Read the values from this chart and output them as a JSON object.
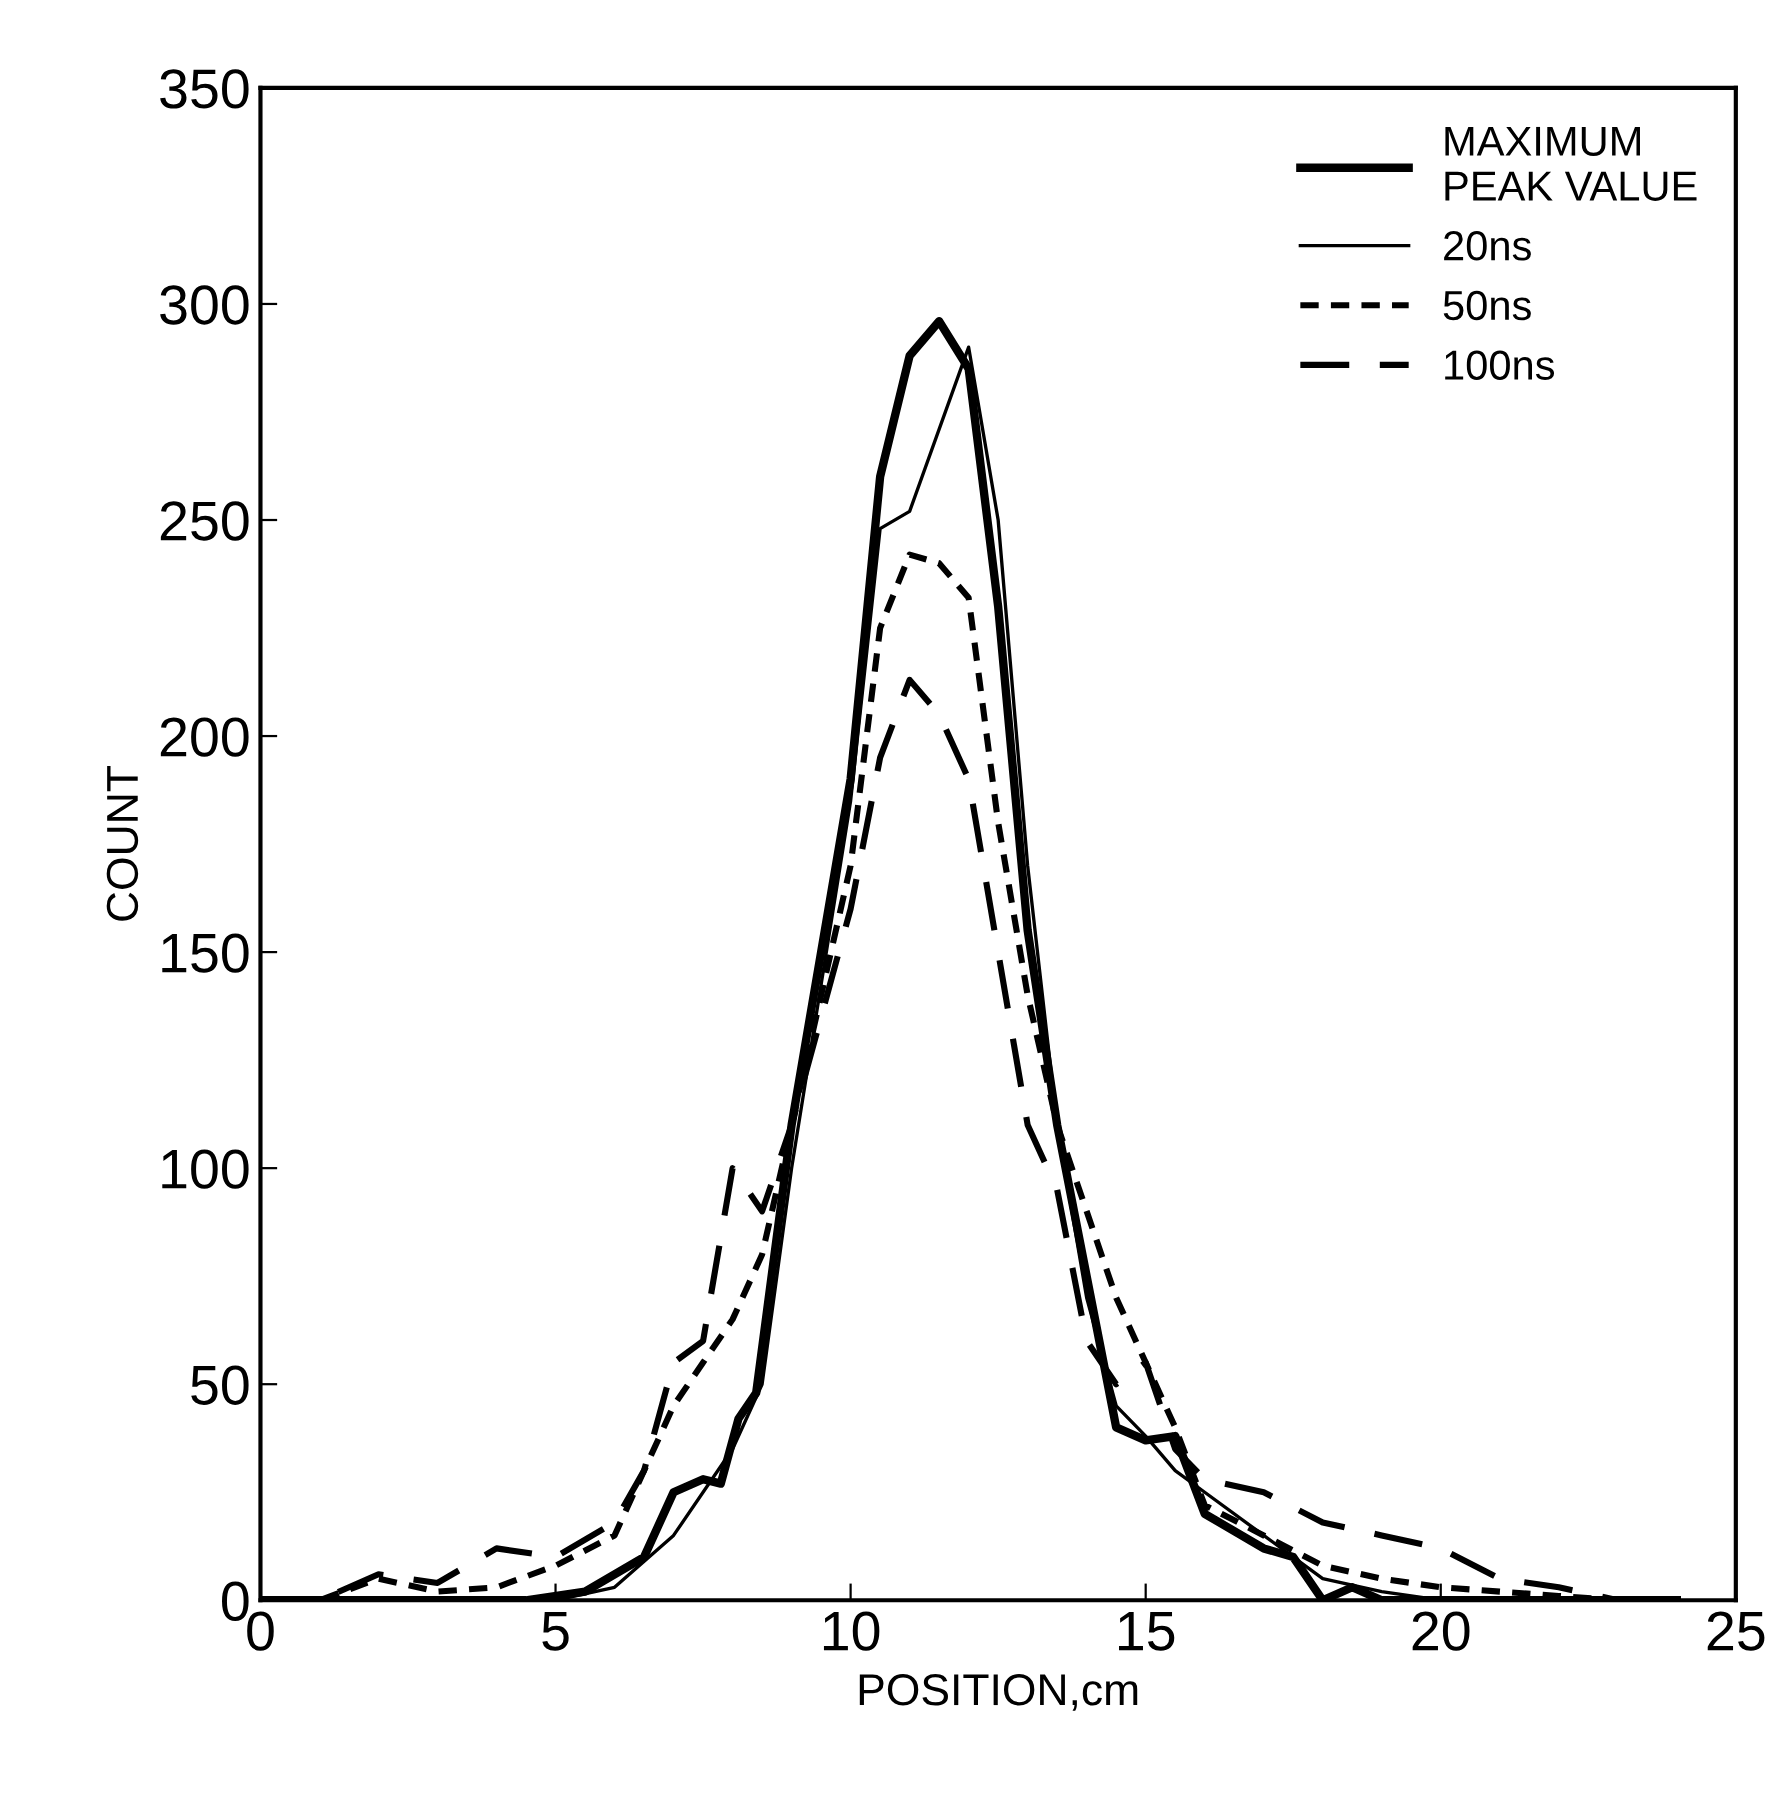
{
  "chart_data": {
    "type": "line",
    "xlabel": "POSITION,cm",
    "ylabel": "COUNT",
    "xlim": [
      0,
      25
    ],
    "ylim": [
      0,
      350
    ],
    "xticks": [
      0,
      5,
      10,
      15,
      20,
      25
    ],
    "yticks": [
      0,
      50,
      100,
      150,
      200,
      250,
      300,
      350
    ],
    "grid": false,
    "legend": "top right",
    "marker": "none",
    "series": [
      {
        "name": "MAXIMUM\nPEAK VALUE",
        "color": "#000000",
        "line_style": "solid",
        "x": [
          0,
          1,
          2,
          3,
          4,
          4.5,
          5.5,
          6.5,
          7,
          7.5,
          7.8,
          8.1,
          8.4,
          9,
          9.5,
          10,
          10.5,
          11,
          11.5,
          12,
          12.5,
          13,
          13.5,
          14,
          14.5,
          15,
          15.5,
          16,
          17,
          17.5,
          18,
          18.5,
          19,
          20,
          21,
          22,
          23,
          24
        ],
        "values": [
          0,
          0,
          0,
          0,
          0,
          0,
          2,
          10,
          25,
          28,
          27,
          42,
          48,
          110,
          150,
          190,
          260,
          288,
          296,
          285,
          230,
          155,
          110,
          75,
          40,
          37,
          38,
          20,
          12,
          10,
          0,
          3,
          0,
          0,
          0,
          0,
          0,
          0
        ]
      },
      {
        "name": "20ns",
        "color": "#000000",
        "line_style": "solid",
        "x": [
          0,
          1,
          2,
          3,
          4,
          5,
          6,
          7,
          8,
          8.5,
          9,
          10,
          10.5,
          11,
          12,
          12.5,
          13,
          13.5,
          14,
          14.5,
          15,
          15.5,
          16,
          17,
          18,
          19,
          20,
          21,
          22,
          23,
          24
        ],
        "values": [
          0,
          0,
          0,
          0,
          0,
          0,
          3,
          15,
          35,
          50,
          100,
          185,
          248,
          252,
          290,
          250,
          170,
          110,
          70,
          45,
          38,
          30,
          25,
          15,
          5,
          2,
          0,
          0,
          0,
          0,
          0
        ]
      },
      {
        "name": "50ns",
        "color": "#000000",
        "line_style": "dotted",
        "x": [
          0,
          1,
          2,
          3,
          4,
          5,
          6,
          7,
          7.5,
          8,
          8.5,
          9,
          10,
          10.5,
          11,
          11.5,
          12,
          12.5,
          13,
          13.5,
          14,
          14.5,
          15,
          15.5,
          16,
          17,
          18,
          19,
          20,
          21,
          22,
          23,
          24
        ],
        "values": [
          0,
          0,
          5,
          2,
          3,
          8,
          15,
          45,
          55,
          65,
          80,
          110,
          170,
          225,
          242,
          240,
          232,
          180,
          140,
          110,
          90,
          70,
          55,
          40,
          22,
          15,
          8,
          5,
          3,
          2,
          1,
          0,
          0
        ]
      },
      {
        "name": "100ns",
        "color": "#000000",
        "line_style": "dashed",
        "x": [
          0,
          1,
          2,
          3,
          4,
          5,
          6,
          6.5,
          7,
          7.5,
          8,
          8.5,
          9,
          10,
          10.5,
          11,
          11.5,
          12,
          12.5,
          13,
          13.5,
          14,
          14.5,
          15,
          15.5,
          16,
          17,
          18,
          19,
          20,
          21,
          22,
          23
        ],
        "values": [
          0,
          0,
          6,
          4,
          12,
          10,
          18,
          30,
          55,
          60,
          100,
          90,
          110,
          160,
          195,
          213,
          205,
          190,
          150,
          110,
          95,
          60,
          50,
          55,
          35,
          28,
          25,
          18,
          15,
          12,
          5,
          3,
          0
        ]
      }
    ]
  }
}
